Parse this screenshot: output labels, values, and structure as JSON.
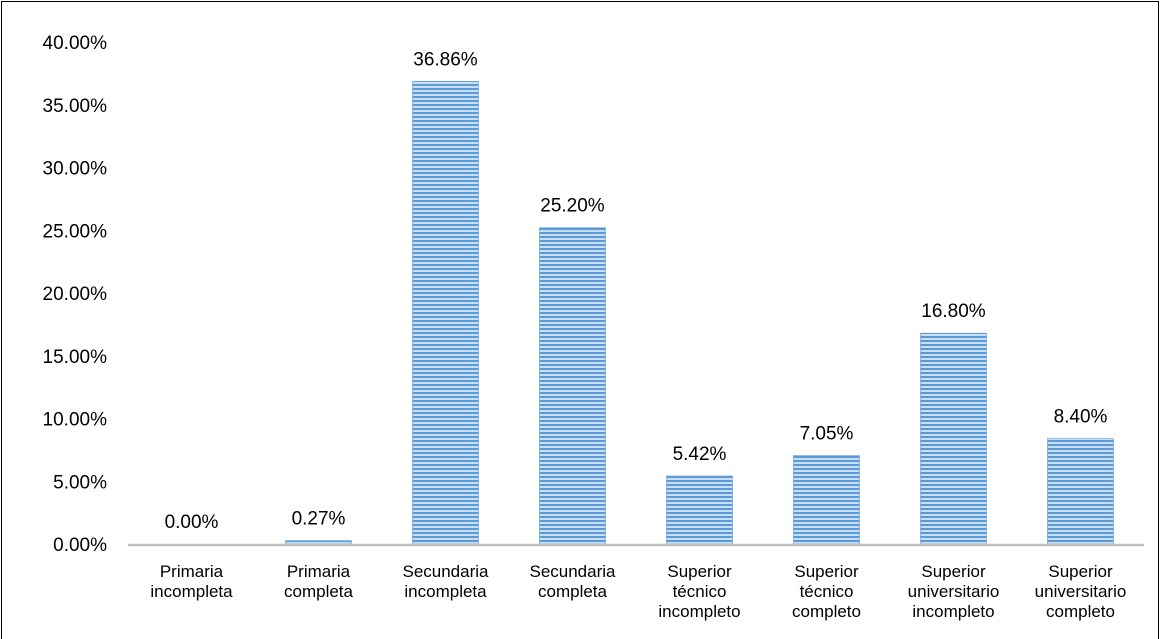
{
  "chart_data": {
    "type": "bar",
    "title": "",
    "xlabel": "",
    "ylabel": "",
    "ylim": [
      0,
      40
    ],
    "yticks": [
      "0.00%",
      "5.00%",
      "10.00%",
      "15.00%",
      "20.00%",
      "25.00%",
      "30.00%",
      "35.00%",
      "40.00%"
    ],
    "categories": [
      [
        "Primaria",
        "incompleta"
      ],
      [
        "Primaria",
        "completa"
      ],
      [
        "Secundaria",
        "incompleta"
      ],
      [
        "Secundaria",
        "completa"
      ],
      [
        "Superior",
        "técnico",
        "incompleto"
      ],
      [
        "Superior",
        "técnico",
        "completo"
      ],
      [
        "Superior",
        "universitario",
        "incompleto"
      ],
      [
        "Superior",
        "universitario",
        "completo"
      ]
    ],
    "values": [
      0.0,
      0.27,
      36.86,
      25.2,
      5.42,
      7.05,
      16.8,
      8.4
    ],
    "data_labels": [
      "0.00%",
      "0.27%",
      "36.86%",
      "25.20%",
      "5.42%",
      "7.05%",
      "16.80%",
      "8.40%"
    ],
    "grid": false,
    "legend": "none",
    "colors": {
      "bar_fill": "#9dc3e6",
      "bar_stripe": "#5b9bd5",
      "axis": "#bfbfbf"
    }
  }
}
